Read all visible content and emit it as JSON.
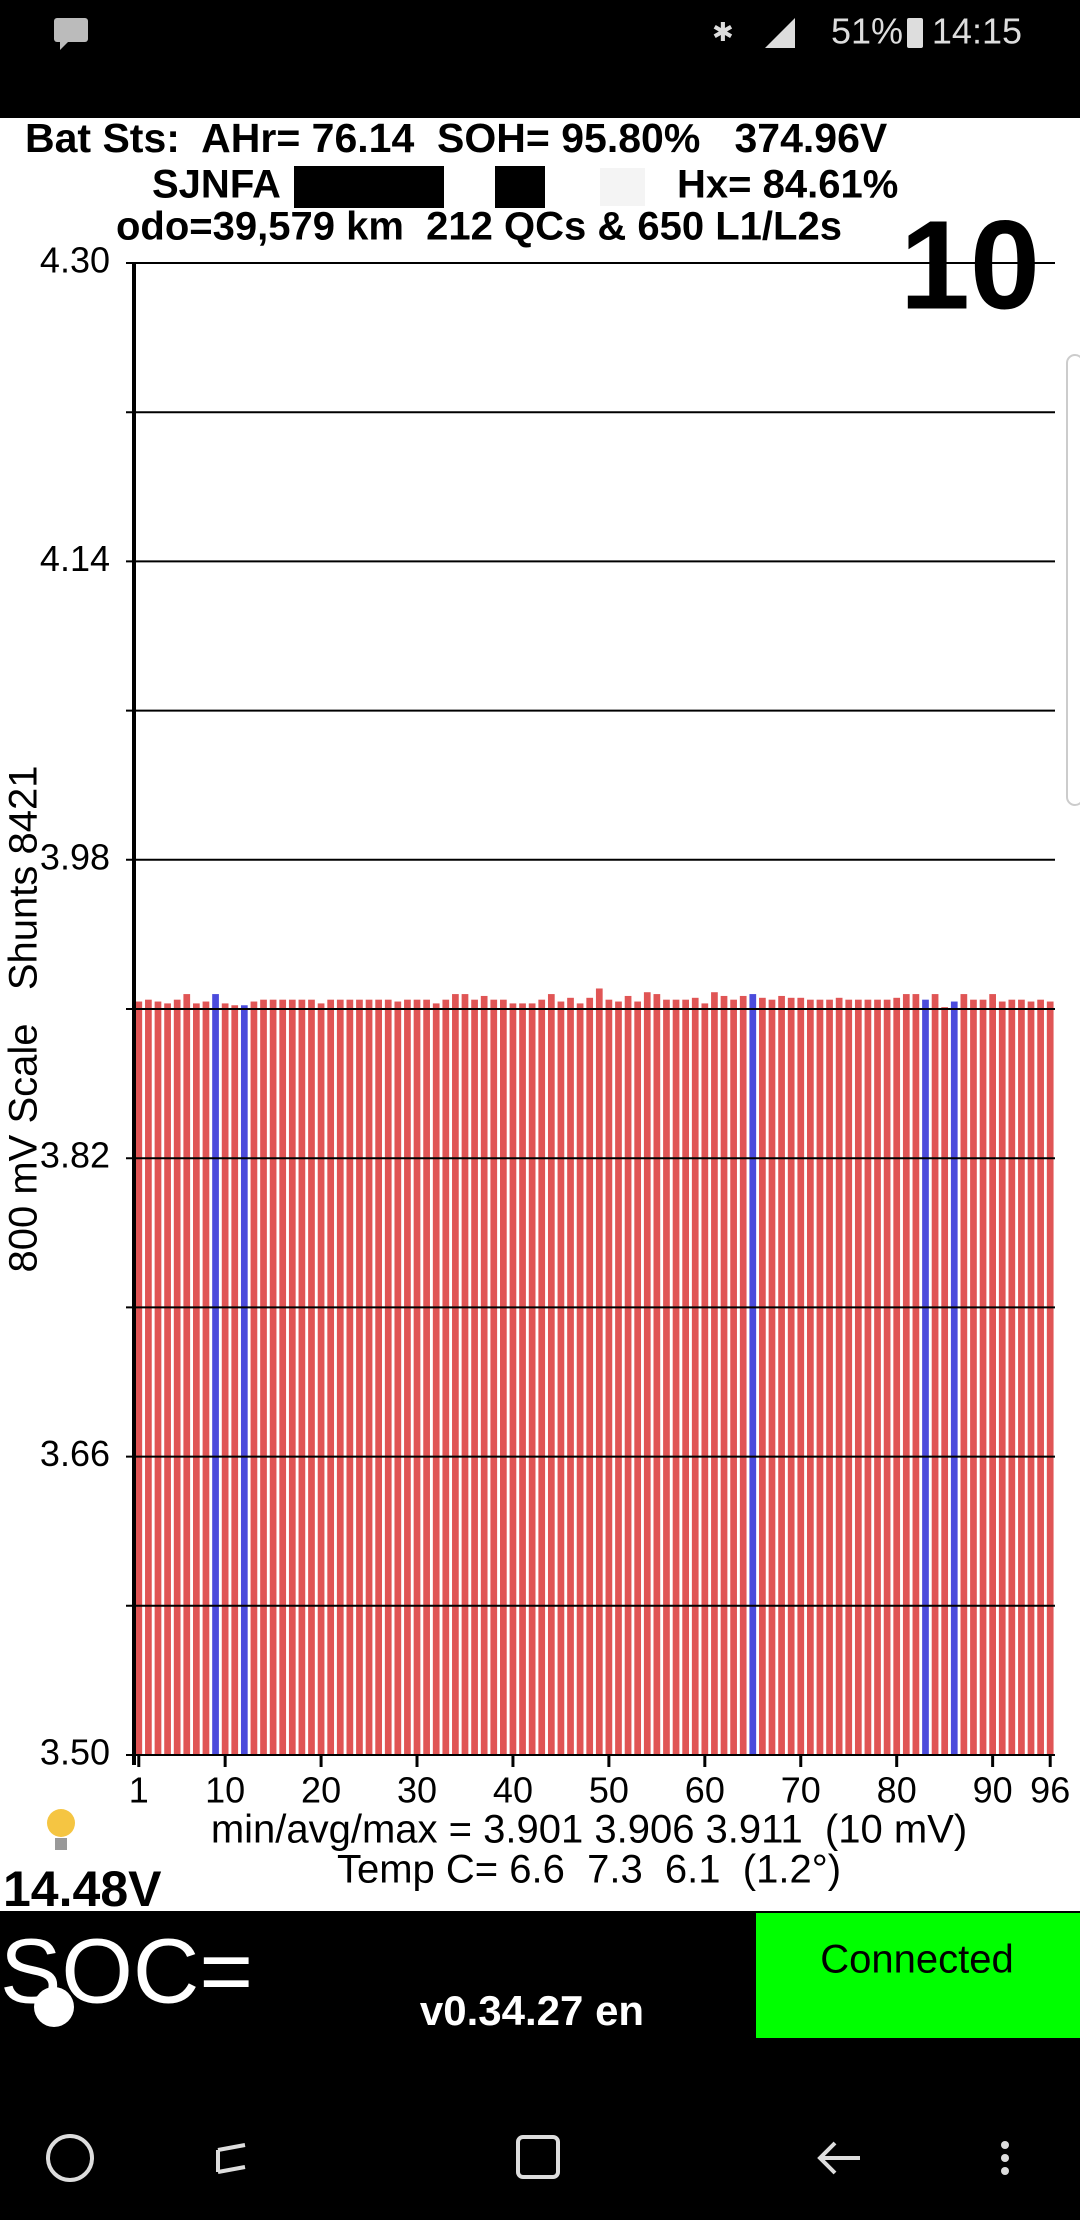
{
  "status_bar": {
    "battery": "51%",
    "time": "14:15"
  },
  "header": {
    "line1": "Bat Sts:  AHr= 76.14  SOH= 95.80%   374.96V",
    "vin_prefix": "SJNFA",
    "hx": "Hx= 84.61%",
    "line3": "odo=39,579 km  212 QCs & 650 L1/L2s",
    "big_number": "10"
  },
  "chart_data": {
    "type": "bar",
    "y_axis_label": "800 mV Scale   Shunts 8421",
    "x": [
      1,
      2,
      3,
      4,
      5,
      6,
      7,
      8,
      9,
      10,
      11,
      12,
      13,
      14,
      15,
      16,
      17,
      18,
      19,
      20,
      21,
      22,
      23,
      24,
      25,
      26,
      27,
      28,
      29,
      30,
      31,
      32,
      33,
      34,
      35,
      36,
      37,
      38,
      39,
      40,
      41,
      42,
      43,
      44,
      45,
      46,
      47,
      48,
      49,
      50,
      51,
      52,
      53,
      54,
      55,
      56,
      57,
      58,
      59,
      60,
      61,
      62,
      63,
      64,
      65,
      66,
      67,
      68,
      69,
      70,
      71,
      72,
      73,
      74,
      75,
      76,
      77,
      78,
      79,
      80,
      81,
      82,
      83,
      84,
      85,
      86,
      87,
      88,
      89,
      90,
      91,
      92,
      93,
      94,
      95,
      96
    ],
    "values": [
      3.904,
      3.905,
      3.904,
      3.903,
      3.905,
      3.908,
      3.903,
      3.904,
      3.908,
      3.903,
      3.902,
      3.902,
      3.904,
      3.905,
      3.905,
      3.905,
      3.905,
      3.905,
      3.905,
      3.903,
      3.905,
      3.905,
      3.905,
      3.905,
      3.905,
      3.905,
      3.905,
      3.904,
      3.905,
      3.905,
      3.905,
      3.903,
      3.905,
      3.908,
      3.908,
      3.905,
      3.907,
      3.905,
      3.905,
      3.903,
      3.903,
      3.903,
      3.905,
      3.908,
      3.904,
      3.906,
      3.903,
      3.906,
      3.911,
      3.905,
      3.904,
      3.907,
      3.904,
      3.909,
      3.908,
      3.905,
      3.905,
      3.905,
      3.906,
      3.903,
      3.909,
      3.907,
      3.905,
      3.907,
      3.908,
      3.906,
      3.905,
      3.907,
      3.906,
      3.906,
      3.905,
      3.905,
      3.905,
      3.906,
      3.905,
      3.905,
      3.905,
      3.905,
      3.905,
      3.906,
      3.908,
      3.908,
      3.905,
      3.908,
      3.901,
      3.904,
      3.908,
      3.905,
      3.905,
      3.908,
      3.904,
      3.905,
      3.905,
      3.904,
      3.905,
      3.904
    ],
    "color": "#e05555",
    "highlight_color": "#4b4bdc",
    "highlight_cells": [
      9,
      12,
      65,
      83,
      86
    ],
    "xlim": [
      0.5,
      96.5
    ],
    "xticks": [
      1,
      10,
      20,
      30,
      40,
      50,
      60,
      70,
      80,
      90,
      96
    ],
    "ylim": [
      3.5,
      4.3
    ],
    "yticks": [
      {
        "value": 3.5,
        "label": "3.50"
      },
      3.66,
      3.82,
      3.98,
      4.14,
      {
        "value": 4.3,
        "label": "4.30"
      }
    ],
    "minor_yticks": [
      3.58,
      3.74,
      3.9,
      4.06,
      4.22
    ],
    "grid": true
  },
  "footer": {
    "stats": "min/avg/max = 3.901 3.906 3.911  (10 mV)",
    "temp": "Temp C= 6.6  7.3  6.1  (1.2°)",
    "voltage": "14.48V",
    "soc": "SOC=",
    "version": "v0.34.27 en",
    "connection": "Connected"
  }
}
